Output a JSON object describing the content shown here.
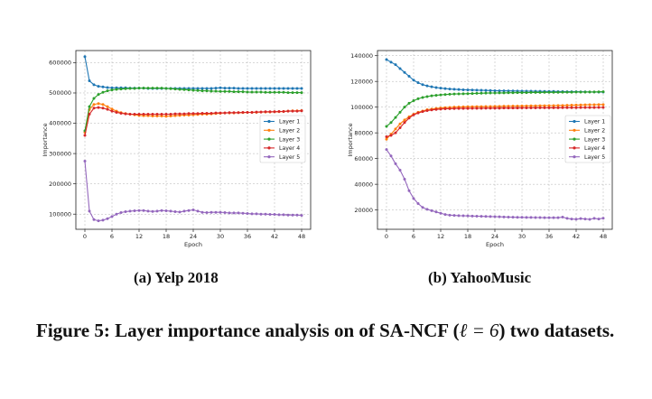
{
  "figure": {
    "caption_prefix": "Figure 5: Layer importance analysis on of SA-NCF (",
    "caption_symbol": "ℓ",
    "caption_eq": " = ",
    "caption_value": "6",
    "caption_suffix": ") two datasets."
  },
  "colors": {
    "layer1": "#1f77b4",
    "layer2": "#ff7f0e",
    "layer3": "#2ca02c",
    "layer4": "#d62728",
    "layer5": "#9467bd"
  },
  "chart_data": [
    {
      "type": "line",
      "subcaption": "(a) Yelp 2018",
      "xlabel": "Epoch",
      "ylabel": "Importance",
      "xlim": [
        -2,
        50
      ],
      "ylim": [
        50000,
        640000
      ],
      "xticks": [
        0,
        6,
        12,
        18,
        24,
        30,
        36,
        42,
        48
      ],
      "yticks": [
        100000,
        200000,
        300000,
        400000,
        500000,
        600000
      ],
      "ytick_labels": [
        "100000",
        "200000",
        "300000",
        "400000",
        "500000",
        "600000"
      ],
      "grid": true,
      "legend": "right",
      "series": [
        {
          "name": "Layer 1",
          "values": [
            620000,
            540000,
            527000,
            522000,
            520000,
            518000,
            517000,
            517000,
            517000,
            517000,
            516000,
            516000,
            516000,
            516000,
            515000,
            515000,
            515000,
            515000,
            515000,
            515000,
            515000,
            515000,
            515000,
            515000,
            515000,
            515000,
            515000,
            515000,
            515000,
            516000,
            517000,
            516000,
            516000,
            516000,
            515000,
            515000,
            515000,
            515000,
            515000,
            515000,
            515000,
            515000,
            515000,
            515000,
            515000,
            515000,
            515000,
            515000,
            515000
          ]
        },
        {
          "name": "Layer 2",
          "values": [
            370000,
            445000,
            462000,
            465000,
            462000,
            455000,
            447000,
            440000,
            435000,
            432000,
            430000,
            428000,
            426000,
            425000,
            425000,
            424000,
            424000,
            424000,
            423000,
            424000,
            425000,
            426000,
            427000,
            427000,
            428000,
            429000,
            430000,
            430000,
            431000,
            432000,
            433000,
            434000,
            434000,
            434000,
            435000,
            435000,
            436000,
            436000,
            436000,
            437000,
            437000,
            437000,
            438000,
            438000,
            439000,
            440000,
            441000,
            441000,
            442000
          ]
        },
        {
          "name": "Layer 3",
          "values": [
            375000,
            455000,
            482000,
            495000,
            502000,
            507000,
            510000,
            512000,
            513000,
            514000,
            515000,
            515000,
            516000,
            516000,
            516000,
            516000,
            516000,
            516000,
            515000,
            514000,
            513000,
            512000,
            511000,
            510000,
            509000,
            508000,
            507000,
            507000,
            506000,
            506000,
            505000,
            505000,
            505000,
            504000,
            504000,
            504000,
            503000,
            503000,
            503000,
            503000,
            502000,
            502000,
            502000,
            502000,
            502000,
            501000,
            501000,
            501000,
            501000
          ]
        },
        {
          "name": "Layer 4",
          "values": [
            360000,
            430000,
            450000,
            452000,
            450000,
            446000,
            440000,
            436000,
            433000,
            431000,
            430000,
            430000,
            430000,
            430000,
            430000,
            430000,
            430000,
            430000,
            430000,
            430000,
            431000,
            431000,
            431000,
            432000,
            432000,
            432000,
            433000,
            433000,
            433000,
            434000,
            434000,
            434000,
            435000,
            435000,
            435000,
            436000,
            436000,
            436000,
            437000,
            437000,
            438000,
            438000,
            438000,
            439000,
            439000,
            440000,
            440000,
            440000,
            441000
          ]
        },
        {
          "name": "Layer 5",
          "values": [
            275000,
            110000,
            82000,
            78000,
            80000,
            85000,
            92000,
            100000,
            105000,
            108000,
            110000,
            111000,
            112000,
            112000,
            110000,
            109000,
            110000,
            112000,
            111000,
            110000,
            108000,
            107000,
            110000,
            112000,
            114000,
            110000,
            106000,
            105000,
            106000,
            106000,
            106000,
            105000,
            104000,
            104000,
            104000,
            103000,
            102000,
            101000,
            101000,
            100000,
            100000,
            99000,
            99000,
            98000,
            98000,
            97000,
            97000,
            97000,
            96000
          ]
        }
      ]
    },
    {
      "type": "line",
      "subcaption": "(b) YahooMusic",
      "xlabel": "Epoch",
      "ylabel": "Importance",
      "xlim": [
        -2,
        50
      ],
      "ylim": [
        5000,
        144000
      ],
      "xticks": [
        0,
        6,
        12,
        18,
        24,
        30,
        36,
        42,
        48
      ],
      "yticks": [
        20000,
        40000,
        60000,
        80000,
        100000,
        120000,
        140000
      ],
      "ytick_labels": [
        "20000",
        "40000",
        "60000",
        "80000",
        "100000",
        "120000",
        "140000"
      ],
      "grid": true,
      "legend": "right",
      "series": [
        {
          "name": "Layer 1",
          "values": [
            137000,
            135000,
            133000,
            130000,
            127000,
            124000,
            121000,
            119000,
            117500,
            116500,
            115800,
            115200,
            114800,
            114400,
            114100,
            113900,
            113700,
            113500,
            113400,
            113300,
            113200,
            113100,
            113000,
            112900,
            112800,
            112700,
            112700,
            112600,
            112600,
            112500,
            112500,
            112400,
            112400,
            112300,
            112300,
            112200,
            112200,
            112200,
            112100,
            112100,
            112000,
            112000,
            112000,
            111900,
            111900,
            111800,
            111800,
            111700,
            111700
          ]
        },
        {
          "name": "Layer 2",
          "values": [
            75000,
            79000,
            83000,
            87000,
            90000,
            92500,
            94500,
            96000,
            97000,
            98000,
            98500,
            99000,
            99300,
            99600,
            99800,
            100000,
            100100,
            100200,
            100300,
            100300,
            100400,
            100400,
            100500,
            100500,
            100600,
            100600,
            100700,
            100700,
            100800,
            100800,
            100900,
            100900,
            101000,
            101000,
            101100,
            101100,
            101200,
            101200,
            101300,
            101300,
            101400,
            101500,
            101600,
            101700,
            101800,
            101900,
            101900,
            102000,
            102000
          ]
        },
        {
          "name": "Layer 3",
          "values": [
            85000,
            88000,
            92000,
            96000,
            100000,
            103000,
            105000,
            106500,
            107500,
            108200,
            108800,
            109200,
            109500,
            109800,
            110000,
            110200,
            110300,
            110400,
            110500,
            110600,
            110700,
            110800,
            110900,
            111000,
            111000,
            111100,
            111100,
            111200,
            111200,
            111300,
            111300,
            111300,
            111400,
            111400,
            111400,
            111500,
            111500,
            111500,
            111500,
            111600,
            111600,
            111600,
            111700,
            111700,
            111700,
            111800,
            111800,
            111900,
            112000
          ]
        },
        {
          "name": "Layer 4",
          "values": [
            77000,
            78000,
            80000,
            84000,
            88000,
            91500,
            94000,
            95500,
            96500,
            97300,
            97800,
            98200,
            98500,
            98700,
            98800,
            98900,
            99000,
            99000,
            99000,
            99100,
            99100,
            99100,
            99200,
            99200,
            99200,
            99200,
            99300,
            99300,
            99300,
            99300,
            99400,
            99400,
            99400,
            99400,
            99500,
            99500,
            99500,
            99500,
            99500,
            99600,
            99600,
            99600,
            99600,
            99700,
            99700,
            99700,
            99700,
            99800,
            99800
          ]
        },
        {
          "name": "Layer 5",
          "values": [
            67000,
            62000,
            56000,
            51000,
            44000,
            35000,
            29000,
            25000,
            22000,
            20500,
            19500,
            18500,
            17500,
            16500,
            16000,
            15800,
            15600,
            15500,
            15400,
            15300,
            15200,
            15100,
            15000,
            14900,
            14800,
            14700,
            14600,
            14500,
            14400,
            14300,
            14300,
            14200,
            14200,
            14100,
            14100,
            14000,
            14000,
            14000,
            14000,
            14500,
            13500,
            13000,
            12800,
            13300,
            13000,
            12700,
            13500,
            13000,
            13600
          ]
        }
      ]
    }
  ]
}
